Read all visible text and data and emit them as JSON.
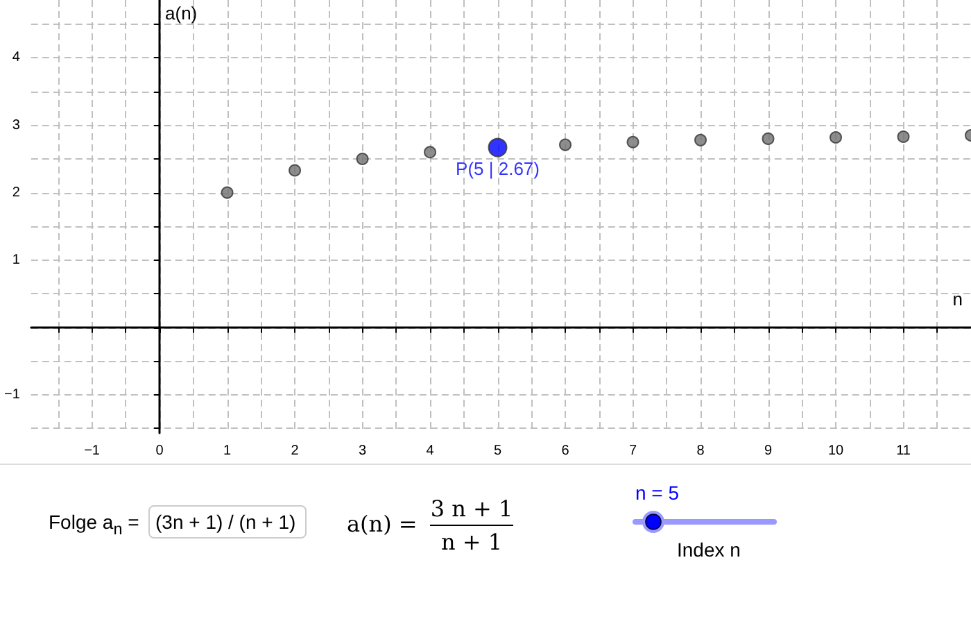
{
  "chart_data": {
    "type": "scatter",
    "xlabel": "n",
    "ylabel": "a(n)",
    "series": [
      {
        "color": "#707070",
        "x": [
          1,
          2,
          3,
          4,
          6,
          7,
          8,
          9,
          10,
          11,
          12
        ],
        "values": [
          2,
          2.33,
          2.5,
          2.6,
          2.71,
          2.75,
          2.78,
          2.8,
          2.82,
          2.83,
          2.85
        ]
      },
      {
        "color": "#0000ff",
        "x": [
          5
        ],
        "values": [
          2.67
        ]
      }
    ],
    "marker": "circle",
    "grid": true,
    "xlim": [
      -1.9,
      12
    ],
    "ylim": [
      -1.57,
      4.86
    ],
    "xticks": [
      {
        "value": -1.5,
        "label": null
      },
      {
        "value": -1,
        "label": "−1"
      },
      {
        "value": -0.5,
        "label": null
      },
      {
        "value": 0,
        "label": "0"
      },
      {
        "value": 0.5,
        "label": null
      },
      1,
      {
        "value": 1.5,
        "label": null
      },
      2,
      {
        "value": 2.5,
        "label": null
      },
      3,
      {
        "value": 3.5,
        "label": null
      },
      4,
      {
        "value": 4.5,
        "label": null
      },
      5,
      {
        "value": 5.5,
        "label": null
      },
      6,
      {
        "value": 6.5,
        "label": null
      },
      7,
      {
        "value": 7.5,
        "label": null
      },
      8,
      {
        "value": 8.5,
        "label": null
      },
      9,
      {
        "value": 9.5,
        "label": null
      },
      10,
      {
        "value": 10.5,
        "label": null
      },
      11,
      {
        "value": 11.5,
        "label": null
      }
    ],
    "yticks": [
      {
        "value": -1.5,
        "label": null
      },
      {
        "value": -1,
        "label": "−1"
      },
      {
        "value": -0.5,
        "label": null
      },
      {
        "value": 0,
        "label": null
      },
      {
        "value": 0.5,
        "label": null
      },
      1,
      {
        "value": 1.5,
        "label": null
      },
      2,
      {
        "value": 2.5,
        "label": null
      },
      3,
      {
        "value": 3.5,
        "label": null
      },
      4,
      {
        "value": 4.5,
        "label": null
      }
    ],
    "annotations": [
      {
        "text": "P(5 | 2.67)",
        "x": 5,
        "y": 2.67
      },
      "Folge a$_{n}$ =",
      "(3n + 1) / (n + 1)",
      "a(n) =",
      "3 n + 1",
      "n + 1",
      "n = 5",
      "Index n"
    ]
  }
}
